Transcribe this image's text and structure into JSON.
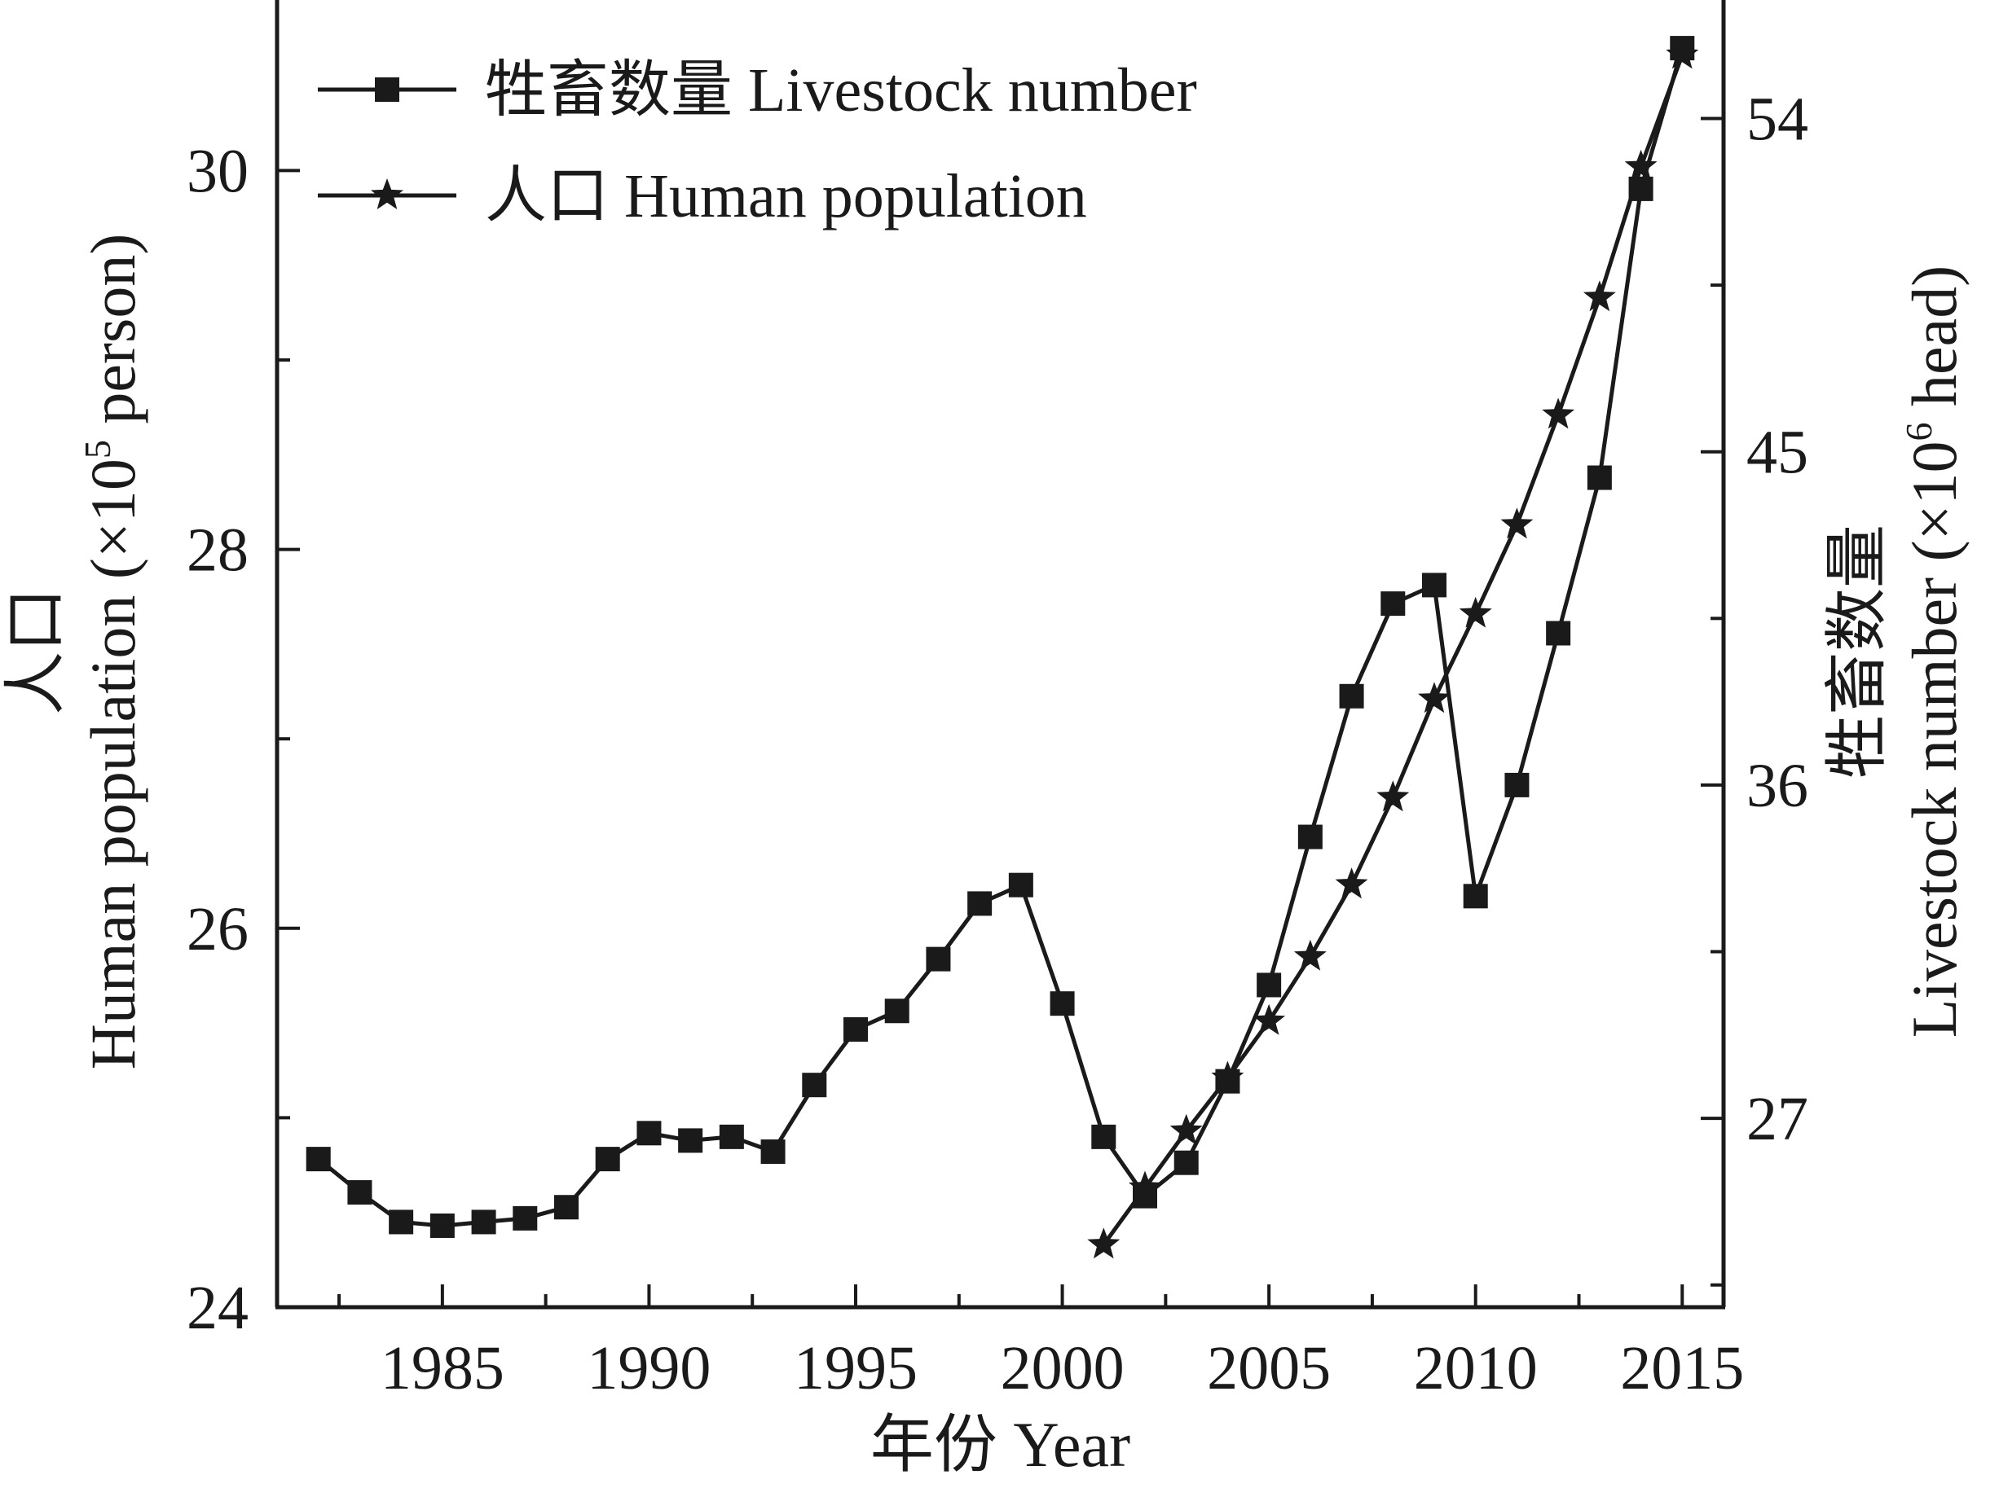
{
  "chart_data": {
    "type": "line",
    "title": "",
    "xlabel": "年份 Year",
    "ylabel_left_cn": "人口",
    "ylabel_left_en": "Human population (×10",
    "ylabel_left_exp": "5",
    "ylabel_left_tail": " person)",
    "ylabel_right_cn": "牲畜数量",
    "ylabel_right_en": "Livestock number (×10",
    "ylabel_right_exp": "6",
    "ylabel_right_tail": " head)",
    "xlim": [
      1981,
      2016
    ],
    "x_ticks": [
      1985,
      1990,
      1995,
      2000,
      2005,
      2010,
      2015
    ],
    "y_left_lim": [
      24,
      30.9
    ],
    "y_left_ticks": [
      24,
      26,
      28,
      30
    ],
    "y_right_lim": [
      21.9,
      57.2
    ],
    "y_right_ticks": [
      27,
      36,
      45,
      54
    ],
    "grid": false,
    "legend_position": "top-left",
    "series": [
      {
        "name": "牲畜数量 Livestock number",
        "marker": "square",
        "axis": "right",
        "x": [
          1982,
          1983,
          1984,
          1985,
          1986,
          1987,
          1988,
          1989,
          1990,
          1991,
          1992,
          1993,
          1994,
          1995,
          1996,
          1997,
          1998,
          1999,
          2000,
          2001,
          2002,
          2003,
          2004,
          2005,
          2006,
          2007,
          2008,
          2009,
          2010,
          2011,
          2012,
          2013,
          2014,
          2015
        ],
        "y": [
          25.9,
          25.0,
          24.2,
          24.1,
          24.2,
          24.3,
          24.6,
          25.9,
          26.6,
          26.4,
          26.5,
          26.1,
          27.9,
          29.4,
          29.9,
          31.3,
          32.8,
          33.3,
          30.1,
          26.5,
          24.9,
          25.8,
          28.0,
          30.6,
          34.6,
          38.4,
          40.9,
          41.4,
          33.0,
          36.0,
          40.1,
          44.3,
          52.1,
          55.9
        ]
      },
      {
        "name": "人口 Human population",
        "marker": "star",
        "axis": "left",
        "x": [
          2001,
          2002,
          2003,
          2004,
          2005,
          2006,
          2007,
          2008,
          2009,
          2010,
          2011,
          2012,
          2013,
          2014,
          2015
        ],
        "y": [
          24.33,
          24.63,
          24.93,
          25.21,
          25.51,
          25.85,
          26.23,
          26.69,
          27.21,
          27.66,
          28.13,
          28.71,
          29.33,
          30.02,
          30.61
        ]
      }
    ]
  }
}
